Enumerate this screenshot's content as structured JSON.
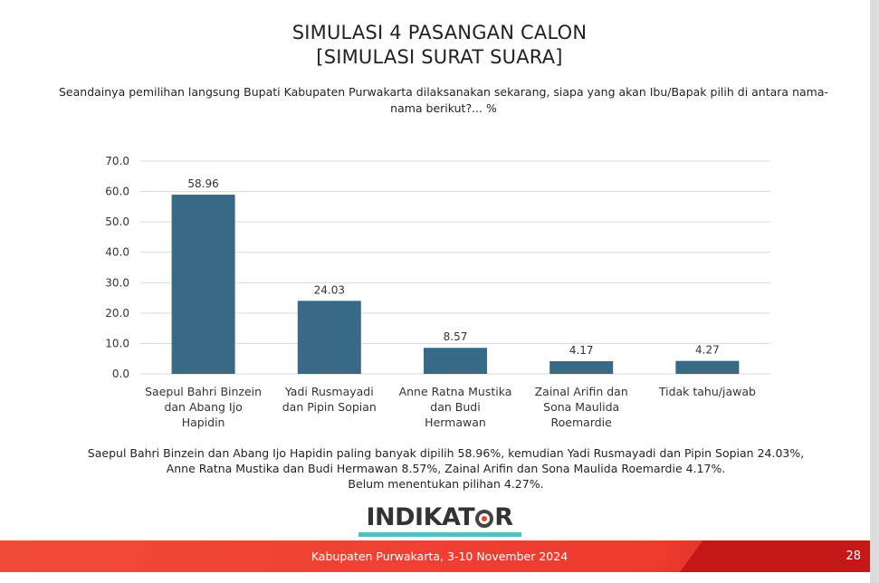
{
  "header": {
    "title_line1": "SIMULASI 4 PASANGAN CALON",
    "title_line2": "[SIMULASI SURAT SUARA]",
    "question": "Seandainya pemilihan langsung Bupati Kabupaten Purwakarta dilaksanakan sekarang, siapa yang akan Ibu/Bapak pilih di antara nama-nama berikut?... %"
  },
  "chart_data": {
    "type": "bar",
    "categories": [
      [
        "Saepul Bahri Binzein",
        "dan Abang Ijo",
        "Hapidin"
      ],
      [
        "Yadi Rusmayadi",
        "dan Pipin Sopian"
      ],
      [
        "Anne Ratna Mustika",
        "dan Budi",
        "Hermawan"
      ],
      [
        "Zainal Arifin dan",
        "Sona Maulida",
        "Roemardie"
      ],
      [
        "Tidak tahu/jawab"
      ]
    ],
    "values": [
      58.96,
      24.03,
      8.57,
      4.17,
      4.27
    ],
    "value_labels": [
      "58.96",
      "24.03",
      "8.57",
      "4.17",
      "4.27"
    ],
    "ylim": [
      0,
      70
    ],
    "yticks": [
      "0.0",
      "10.0",
      "20.0",
      "30.0",
      "40.0",
      "50.0",
      "60.0",
      "70.0"
    ],
    "grid": true,
    "bar_color": "#366a86"
  },
  "summary": {
    "line1": "Saepul Bahri Binzein dan Abang Ijo Hapidin paling banyak dipilih 58.96%, kemudian Yadi Rusmayadi dan Pipin Sopian 24.03%,",
    "line2": "Anne Ratna Mustika dan Budi Hermawan 8.57%, Zainal Arifin dan Sona Maulida Roemardie 4.17%.",
    "line3": "Belum menentukan pilihan 4.27%."
  },
  "logo": {
    "text_before": "INDIKAT",
    "text_after": "R"
  },
  "footer": {
    "text": "Kabupaten Purwakarta, 3-10 November 2024",
    "page_number": "28"
  },
  "colors": {
    "footer_red": "#ee3b2f",
    "logo_accent": "#4fc3c3"
  }
}
